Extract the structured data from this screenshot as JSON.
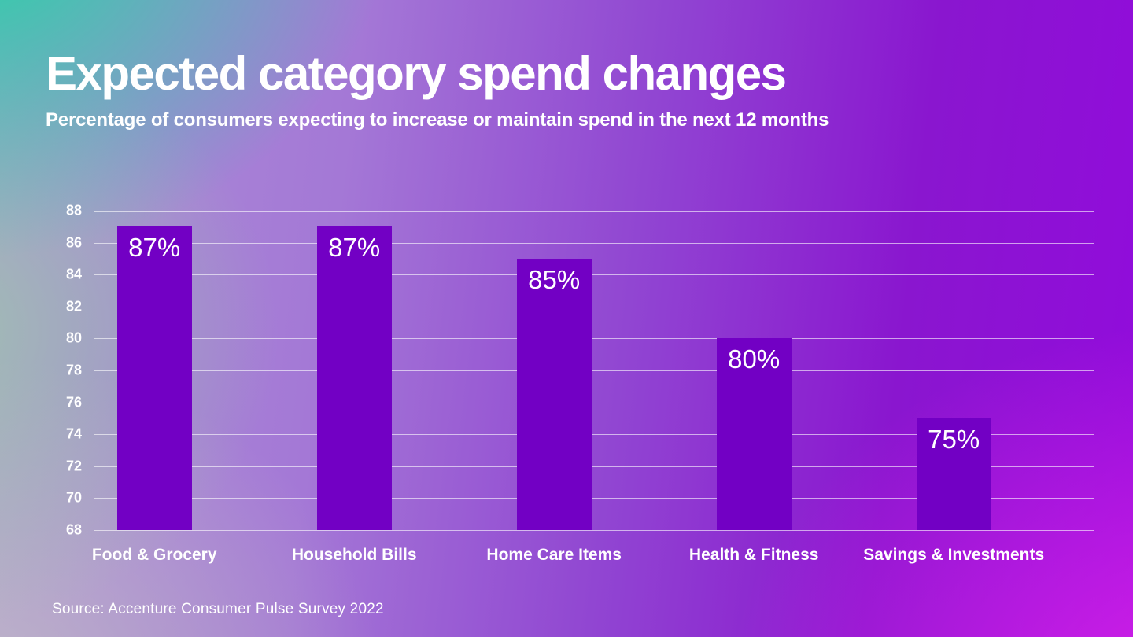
{
  "header": {
    "title": "Expected category spend changes",
    "subtitle": "Percentage of consumers expecting to increase or maintain spend in the next 12 months"
  },
  "footer": {
    "source": "Source: Accenture Consumer Pulse Survey 2022"
  },
  "chart_data": {
    "type": "bar",
    "title": "Expected category spend changes",
    "subtitle": "Percentage of consumers expecting to increase or maintain spend in the next 12 months",
    "categories": [
      "Food & Grocery",
      "Household Bills",
      "Home Care Items",
      "Health & Fitness",
      "Savings & Investments"
    ],
    "values": [
      87,
      87,
      85,
      80,
      75
    ],
    "value_labels": [
      "87%",
      "87%",
      "85%",
      "80%",
      "75%"
    ],
    "ylim": [
      68,
      88
    ],
    "yticks": [
      68,
      70,
      72,
      74,
      76,
      78,
      80,
      82,
      84,
      86,
      88
    ],
    "grid": true,
    "legend_position": "none",
    "bar_color": "#7200c4",
    "grid_color": "rgba(255,255,255,0.6)",
    "text_color": "#ffffff",
    "source": "Source: Accenture Consumer Pulse Survey 2022"
  }
}
